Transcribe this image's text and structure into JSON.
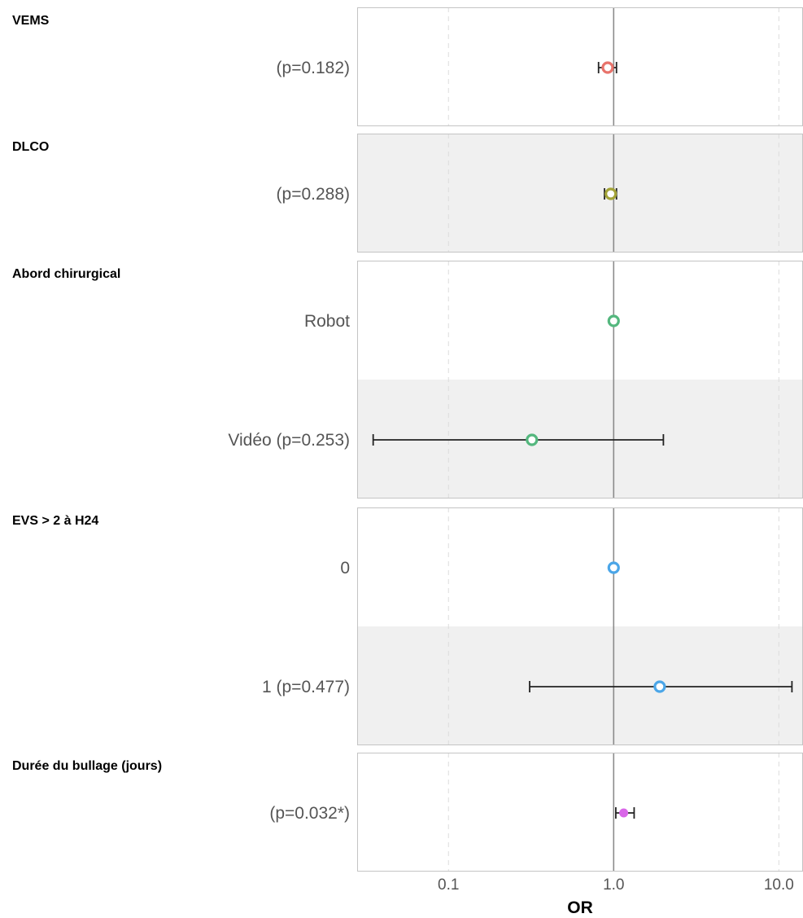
{
  "chart_data": {
    "type": "forest",
    "xlabel": "OR",
    "x_scale": "log10",
    "xlim": [
      0.028,
      14
    ],
    "x_ticks": [
      0.1,
      1.0,
      10.0
    ],
    "x_tick_labels": [
      "0.1",
      "1.0",
      "10.0"
    ],
    "reference_line": 1.0,
    "grid": "vertical dashed at major ticks",
    "groups": [
      {
        "title": "VEMS",
        "color": "#E8736B",
        "rows": [
          {
            "label": "(p=0.182)",
            "or": 0.92,
            "lower": 0.81,
            "upper": 1.04,
            "reference": false,
            "striped": false
          }
        ]
      },
      {
        "title": "DLCO",
        "color": "#A3A338",
        "rows": [
          {
            "label": "(p=0.288)",
            "or": 0.96,
            "lower": 0.88,
            "upper": 1.04,
            "reference": false,
            "striped": true
          }
        ]
      },
      {
        "title": "Abord chirurgical",
        "color": "#54B77E",
        "rows": [
          {
            "label": "Robot",
            "or": 1.0,
            "lower": null,
            "upper": null,
            "reference": true,
            "striped": false
          },
          {
            "label": "Vidéo (p=0.253)",
            "or": 0.32,
            "lower": 0.035,
            "upper": 2.0,
            "reference": false,
            "striped": true
          }
        ]
      },
      {
        "title": "EVS > 2 à H24",
        "color": "#4BA6E8",
        "rows": [
          {
            "label": "0",
            "or": 1.0,
            "lower": null,
            "upper": null,
            "reference": true,
            "striped": false
          },
          {
            "label": "1 (p=0.477)",
            "or": 1.9,
            "lower": 0.31,
            "upper": 12.0,
            "reference": false,
            "striped": true
          }
        ]
      },
      {
        "title": "Durée du bullage (jours)",
        "color": "#D966E8",
        "rows": [
          {
            "label": "(p=0.032*)",
            "or": 1.15,
            "lower": 1.03,
            "upper": 1.33,
            "reference": false,
            "striped": false,
            "filled": true
          }
        ]
      }
    ]
  }
}
